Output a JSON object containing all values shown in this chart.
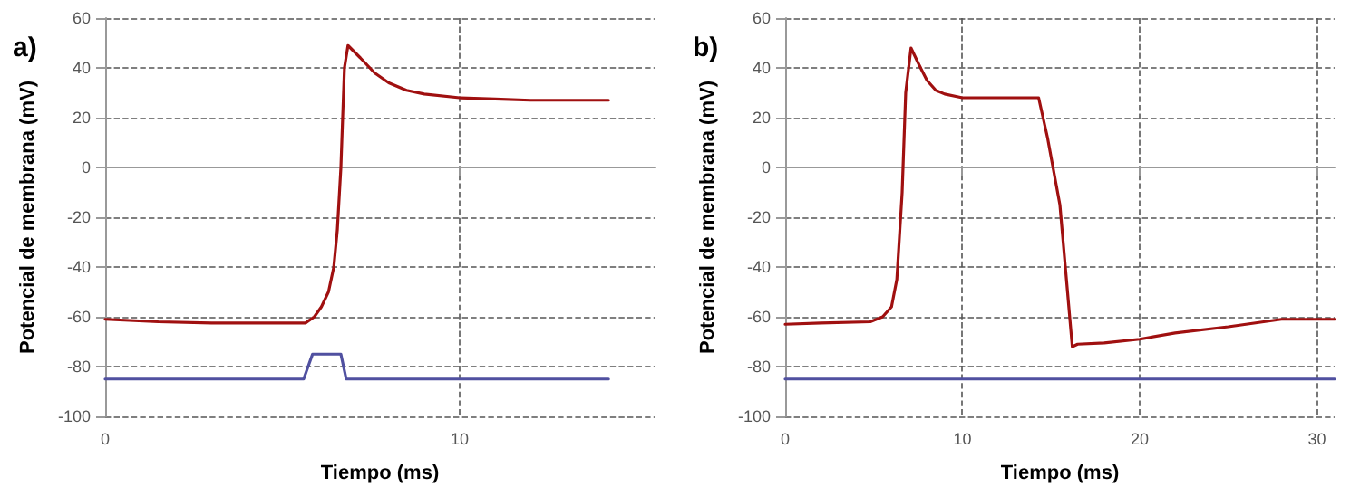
{
  "chart_data": [
    {
      "type": "line",
      "title": "a)",
      "xlabel": "Tiempo (ms)",
      "ylabel": "Potencial de membrana (mV)",
      "xlim": [
        0,
        15.5
      ],
      "xticks": [
        0,
        10
      ],
      "ylim": [
        -100,
        60
      ],
      "yticks": [
        -100,
        -80,
        -60,
        -40,
        -20,
        0,
        20,
        40,
        60
      ],
      "grid": true,
      "series": [
        {
          "color": "#a01010",
          "x": [
            0,
            1.5,
            3,
            5,
            5.65,
            5.9,
            6.1,
            6.3,
            6.45,
            6.55,
            6.65,
            6.75,
            6.85,
            7.2,
            7.6,
            8,
            8.5,
            9,
            10,
            11,
            12,
            14.2
          ],
          "values": [
            -61,
            -62,
            -62.5,
            -62.5,
            -62.5,
            -60,
            -56,
            -50,
            -40,
            -25,
            0,
            40,
            49,
            44,
            38,
            34,
            31,
            29.5,
            28,
            27.5,
            27,
            27
          ]
        },
        {
          "color": "#5050a0",
          "x": [
            0,
            5.6,
            5.85,
            6.65,
            6.8,
            14.2
          ],
          "values": [
            -85,
            -85,
            -75,
            -75,
            -85,
            -85
          ]
        }
      ]
    },
    {
      "type": "line",
      "title": "b)",
      "xlabel": "Tiempo (ms)",
      "ylabel": "Potencial de membrana (mV)",
      "xlim": [
        0,
        31
      ],
      "xticks": [
        0,
        10,
        20,
        30
      ],
      "ylim": [
        -100,
        60
      ],
      "yticks": [
        -100,
        -80,
        -60,
        -40,
        -20,
        0,
        20,
        40,
        60
      ],
      "grid": true,
      "series": [
        {
          "color": "#a01010",
          "x": [
            0,
            2,
            4.8,
            5.5,
            6,
            6.3,
            6.6,
            6.8,
            7.1,
            7.5,
            8,
            8.5,
            9,
            10,
            12,
            14.3,
            14.8,
            15.5,
            16.2,
            16.5,
            18,
            20,
            22,
            25,
            28,
            31
          ],
          "values": [
            -63,
            -62.5,
            -62,
            -60,
            -56,
            -45,
            -10,
            30,
            48,
            42,
            35,
            31,
            29.5,
            28,
            28,
            28,
            12,
            -15,
            -72,
            -71,
            -70.5,
            -69,
            -66.5,
            -64,
            -61,
            -61
          ]
        },
        {
          "color": "#5050a0",
          "x": [
            0,
            31
          ],
          "values": [
            -85,
            -85
          ]
        }
      ]
    }
  ]
}
